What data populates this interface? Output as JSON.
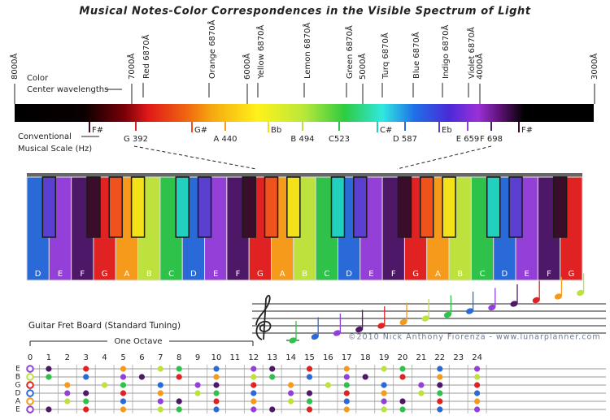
{
  "title": "Musical Notes-Color Correspondences in the Visible Spectrum of Light",
  "spectrum": {
    "wavelength_labels": [
      "8000Å",
      "7000Å",
      "6000Å",
      "5000Å",
      "4000Å",
      "3000Å"
    ],
    "color_labels": [
      "Red 6870Å",
      "Orange 6870Å",
      "Yellow 6870Å",
      "Lemon 6870Å",
      "Green 6870Å",
      "Turq 6870Å",
      "Blue 6870Å",
      "Indigo 6870Å",
      "Violet 6870Å"
    ],
    "left_labels": {
      "color": "Color",
      "center": "Center wavelengths",
      "conventional": "Conventional",
      "scale": "Musical Scale (Hz)"
    },
    "note_labels": [
      "F#",
      "G 392",
      "G#",
      "A 440",
      "Bb",
      "B 494",
      "C523",
      "C#",
      "D 587",
      "Eb",
      "E 659",
      "F 698",
      "F#"
    ]
  },
  "piano": {
    "keys": [
      "D",
      "E",
      "F",
      "G",
      "A",
      "B",
      "C",
      "D",
      "E",
      "F",
      "G",
      "A",
      "B",
      "C",
      "D",
      "E",
      "F",
      "G",
      "A",
      "B",
      "C",
      "D",
      "E",
      "F",
      "G"
    ]
  },
  "staff": {
    "copyright": "©2010 Nick Anthony Fiorenza - www.lunarplanner.com"
  },
  "guitar": {
    "title": "Guitar Fret Board (Standard Tuning)",
    "octave_label": "One Octave",
    "frets": [
      0,
      1,
      2,
      3,
      4,
      5,
      6,
      7,
      8,
      9,
      10,
      11,
      12,
      13,
      14,
      15,
      16,
      17,
      18,
      19,
      20,
      21,
      22,
      23,
      24
    ],
    "strings": [
      "E",
      "B",
      "G",
      "D",
      "A",
      "E"
    ]
  }
}
